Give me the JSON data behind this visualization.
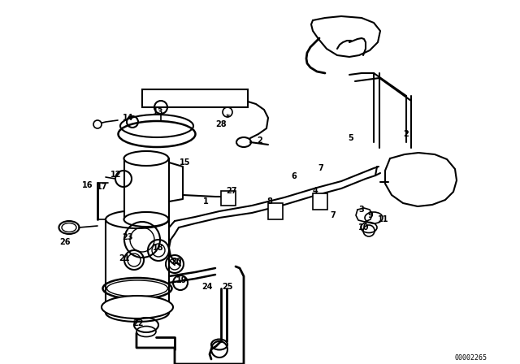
{
  "bg_color": "#ffffff",
  "line_color": "#000000",
  "diagram_id": "00002265",
  "figsize": [
    6.4,
    4.48
  ],
  "dpi": 100,
  "xlim": [
    0,
    640
  ],
  "ylim": [
    0,
    448
  ]
}
